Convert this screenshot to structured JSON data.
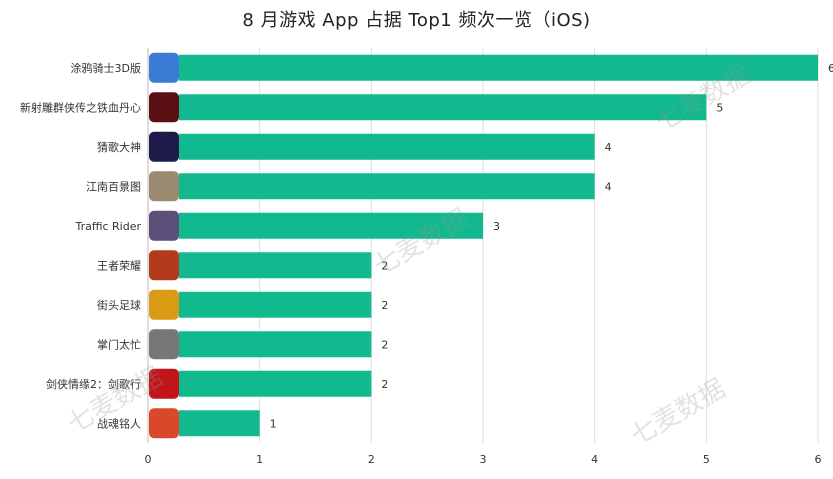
{
  "chart_data": {
    "type": "bar",
    "orientation": "horizontal",
    "title": "8 月游戏 App 占据 Top1 频次一览（iOS)",
    "categories": [
      "涂鸦骑士3D版",
      "新射雕群侠传之铁血丹心",
      "猜歌大神",
      "江南百景图",
      "Traffic Rider",
      "王者荣耀",
      "街头足球",
      "掌门太忙",
      "剑侠情缘2：剑歌行",
      "战魂铭人"
    ],
    "values": [
      6,
      5,
      4,
      4,
      3,
      2,
      2,
      2,
      2,
      1
    ],
    "xlim": [
      0,
      6
    ],
    "xticks": [
      0,
      1,
      2,
      3,
      4,
      5,
      6
    ],
    "grid": true,
    "bar_color": "#12b98f",
    "icon_colors": [
      "#3a7bd5",
      "#5a0f14",
      "#1e1b4b",
      "#9a8a70",
      "#5b4f7a",
      "#b33a1a",
      "#d99b14",
      "#777777",
      "#c2151b",
      "#d9482b"
    ]
  },
  "watermark": "七麦数据"
}
